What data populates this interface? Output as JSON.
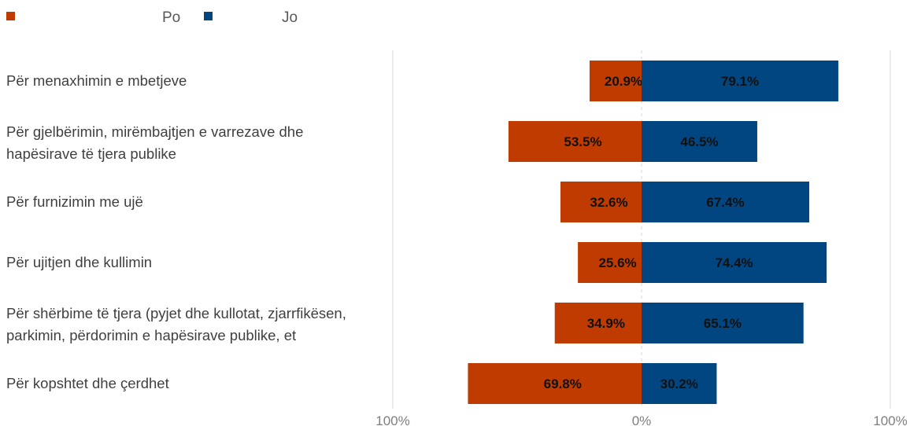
{
  "chart_data": {
    "type": "bar",
    "orientation": "horizontal-diverging",
    "series": [
      {
        "name": "Po",
        "color": "#bf3b00",
        "values": [
          20.9,
          53.5,
          32.6,
          25.6,
          34.9,
          69.8
        ]
      },
      {
        "name": "Jo",
        "color": "#014681",
        "values": [
          79.1,
          46.5,
          67.4,
          74.4,
          65.1,
          30.2
        ]
      }
    ],
    "categories": [
      [
        "Për menaxhimin e mbetjeve"
      ],
      [
        "Për gjelbërimin, mirëmbajtjen e varrezave dhe",
        "hapësirave të tjera publike"
      ],
      [
        "Për furnizimin me ujë"
      ],
      [
        "Për ujitjen dhe kullimin"
      ],
      [
        "Për shërbime të tjera (pyjet dhe kullotat, zjarrfikësen,",
        "parkimin, përdorimin e hapësirave publike, et"
      ],
      [
        "Për kopshtet dhe çerdhet"
      ]
    ],
    "data_labels": {
      "Po": [
        "20.9%",
        "53.5%",
        "32.6%",
        "25.6%",
        "34.9%",
        "69.8%"
      ],
      "Jo": [
        "79.1%",
        "46.5%",
        "67.4%",
        "74.4%",
        "65.1%",
        "30.2%"
      ]
    },
    "xaxis": {
      "range": [
        -100,
        100
      ],
      "ticks": [
        -100,
        0,
        100
      ],
      "tick_labels": [
        "100%",
        "0%",
        "100%"
      ]
    },
    "legend": {
      "position": "top-left",
      "entries": [
        "Po",
        "Jo"
      ]
    },
    "grid": true
  }
}
